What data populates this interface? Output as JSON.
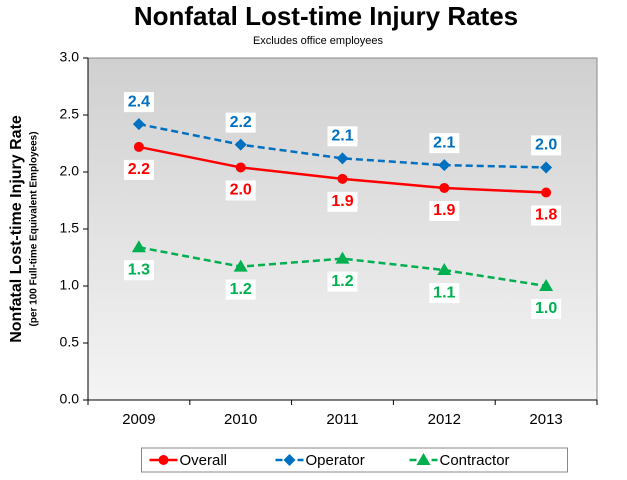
{
  "chart_data": {
    "type": "line",
    "title": "Nonfatal Lost-time Injury Rates",
    "subtitle": "Excludes office employees",
    "y_label": "Nonfatal Lost-time Injury Rate",
    "y_sublabel": "(per 100 Full-time Equivalent Employees)",
    "categories": [
      "2009",
      "2010",
      "2011",
      "2012",
      "2013"
    ],
    "series": [
      {
        "name": "Overall",
        "color": "#ff0000",
        "marker": "circle",
        "dashed": false,
        "label_position": "below",
        "values": [
          2.22,
          2.04,
          1.94,
          1.86,
          1.82
        ],
        "value_labels": [
          "2.2",
          "2.0",
          "1.9",
          "1.9",
          "1.8"
        ]
      },
      {
        "name": "Operator",
        "color": "#0070c0",
        "marker": "diamond",
        "dashed": true,
        "label_position": "above",
        "values": [
          2.42,
          2.24,
          2.12,
          2.06,
          2.04
        ],
        "value_labels": [
          "2.4",
          "2.2",
          "2.1",
          "2.1",
          "2.0"
        ]
      },
      {
        "name": "Contractor",
        "color": "#00b050",
        "marker": "triangle",
        "dashed": true,
        "label_position": "below",
        "values": [
          1.34,
          1.17,
          1.24,
          1.14,
          1.0
        ],
        "value_labels": [
          "1.3",
          "1.2",
          "1.2",
          "1.1",
          "1.0"
        ]
      }
    ],
    "ylim": [
      0,
      3
    ],
    "yticks": [
      {
        "value": 0,
        "label": "0.0"
      },
      {
        "value": 0.5,
        "label": "0.5"
      },
      {
        "value": 1,
        "label": "1.0"
      },
      {
        "value": 1.5,
        "label": "1.5"
      },
      {
        "value": 2,
        "label": "2.0"
      },
      {
        "value": 2.5,
        "label": "2.5"
      },
      {
        "value": 3,
        "label": "3.0"
      }
    ],
    "grid": false,
    "legend": "bottom"
  }
}
